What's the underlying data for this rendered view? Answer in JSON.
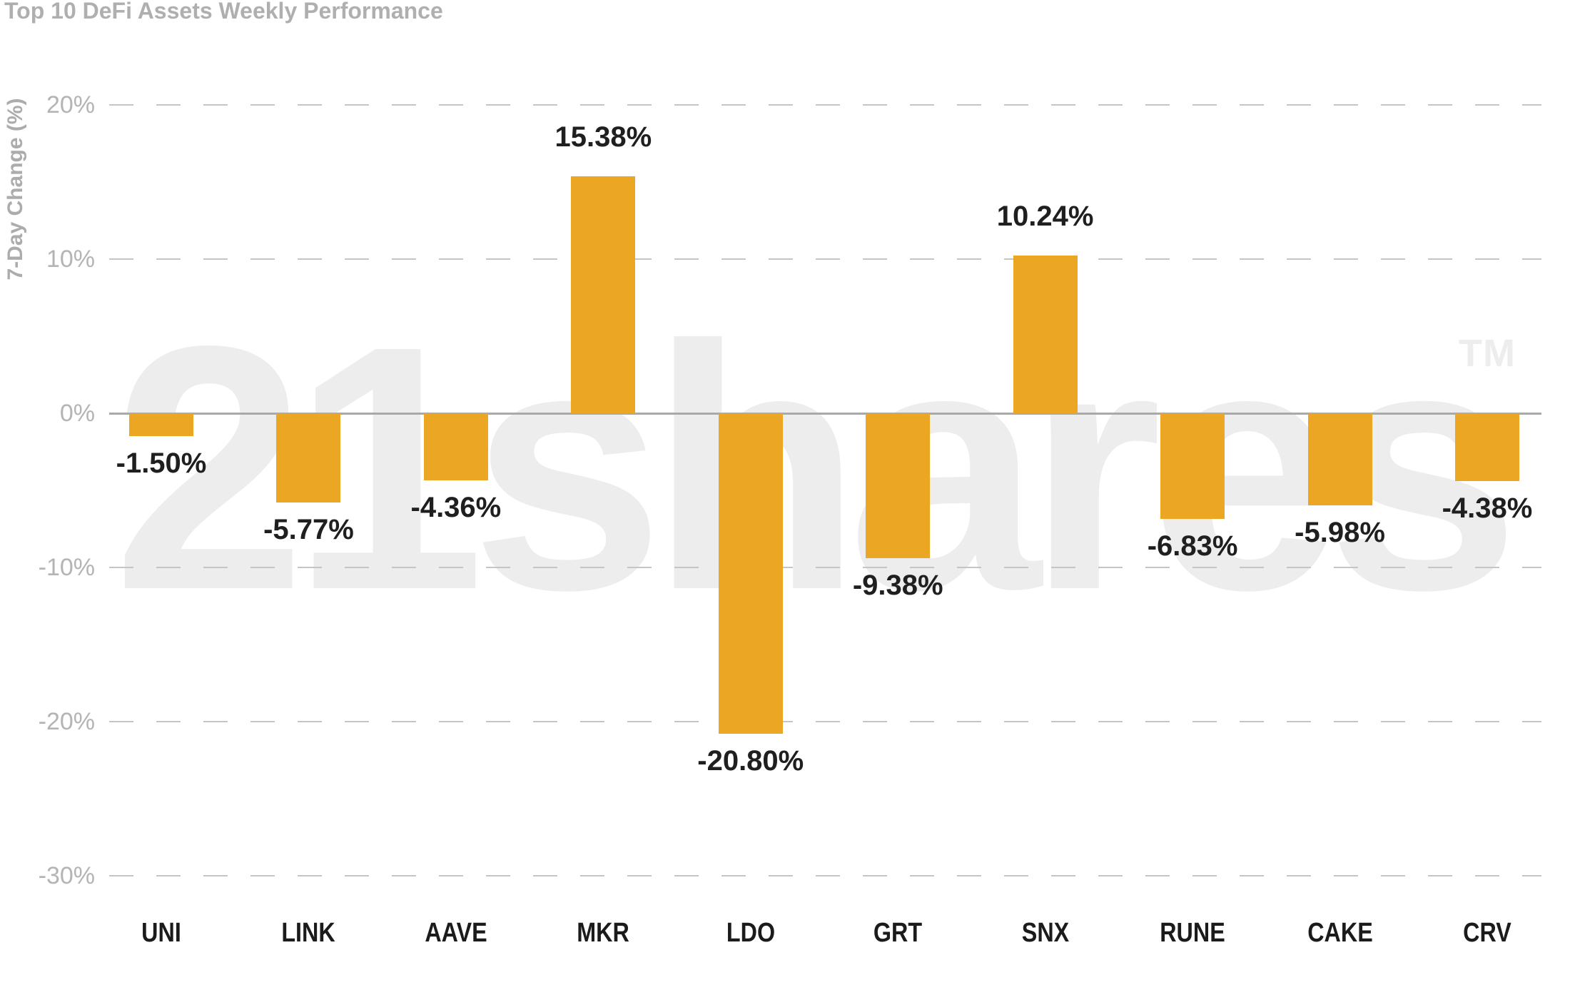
{
  "title": "Top 10 DeFi Assets Weekly Performance",
  "watermark": {
    "text": "21shares",
    "tm": "TM"
  },
  "chart_data": {
    "type": "bar",
    "title": "Top 10 DeFi Assets Weekly Performance",
    "ylabel": "7-Day Change (%)",
    "xlabel": "",
    "categories": [
      "UNI",
      "LINK",
      "AAVE",
      "MKR",
      "LDO",
      "GRT",
      "SNX",
      "RUNE",
      "CAKE",
      "CRV"
    ],
    "values": [
      -1.5,
      -5.77,
      -4.36,
      15.38,
      -20.8,
      -9.38,
      10.24,
      -6.83,
      -5.98,
      -4.38
    ],
    "value_labels": [
      "-1.50%",
      "-5.77%",
      "-4.36%",
      "15.38%",
      "-20.80%",
      "-9.38%",
      "10.24%",
      "-6.83%",
      "-5.98%",
      "-4.38%"
    ],
    "yticks": [
      20,
      10,
      0,
      -10,
      -20,
      -30
    ],
    "ytick_labels": [
      "20%",
      "10%",
      "0%",
      "-10%",
      "-20%",
      "-30%"
    ],
    "ylim": [
      -33,
      24
    ],
    "grid": "horizontal-dashed",
    "legend": "none",
    "colors": {
      "bar": "#EBA724",
      "title_text": "#AFAFAF",
      "axis_text": "#B4B4B4",
      "grid_line": "#C5C5C5",
      "zero_line": "#A9A9A9",
      "value_text": "#1F1F1F",
      "category_text": "#1B1B1B",
      "watermark": "#EDEDED",
      "background": "#FFFFFF"
    }
  }
}
